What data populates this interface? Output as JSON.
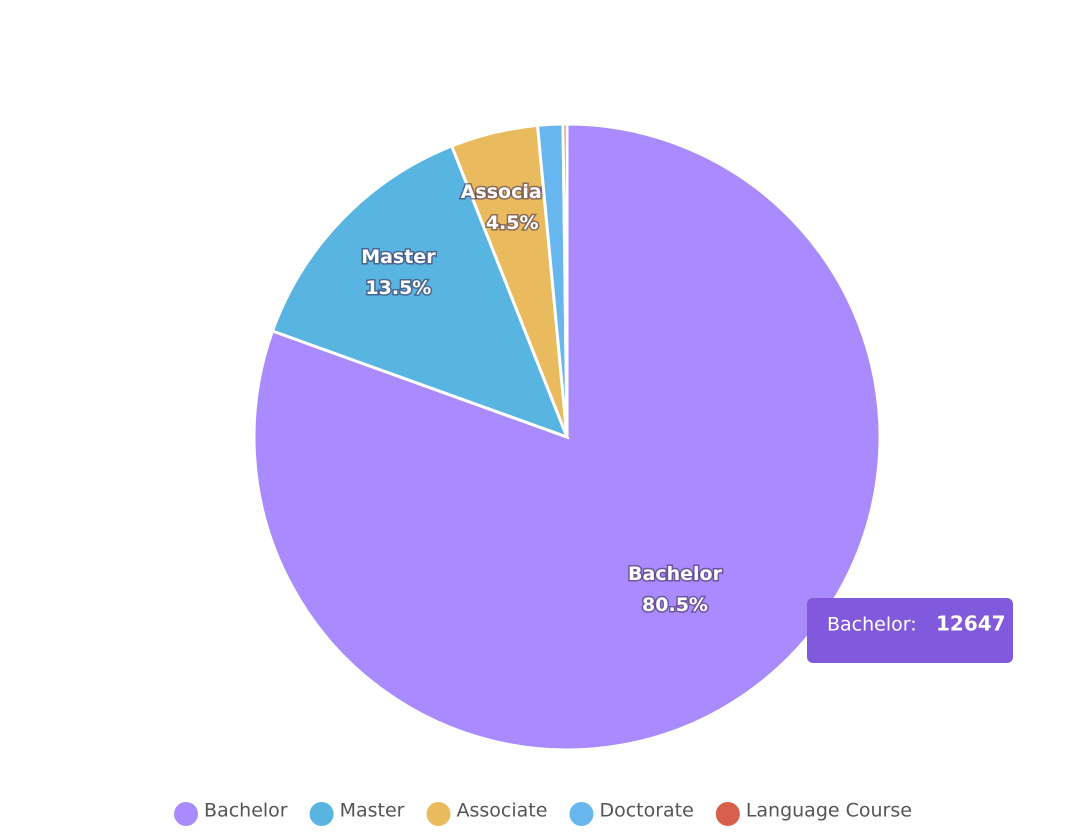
{
  "chart_data": {
    "type": "pie",
    "categories": [
      "Bachelor",
      "Master",
      "Associate",
      "Doctorate",
      "Language Course"
    ],
    "values": [
      12647,
      2121,
      707,
      204,
      32
    ],
    "value_labels": [
      "80.5%",
      "13.5%",
      "4.5%",
      null,
      null
    ],
    "colors": [
      "#aa8bff",
      "#58b4e0",
      "#eaba5f",
      "#67b6ee",
      "#d75f4b"
    ],
    "legend": "bottom",
    "tooltip": {
      "label": "Bachelor:",
      "value": 12647
    }
  }
}
